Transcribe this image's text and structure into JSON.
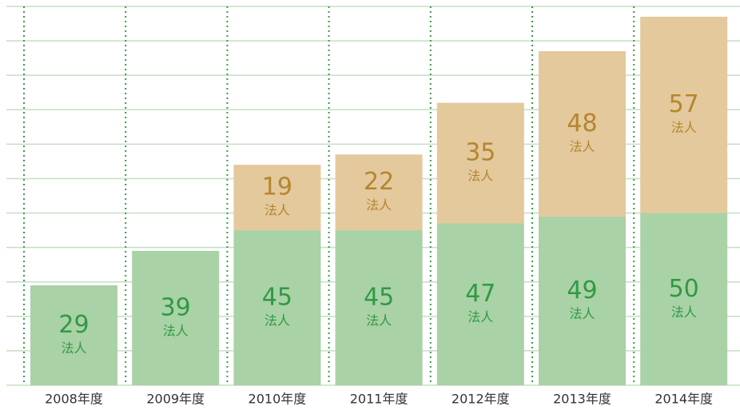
{
  "chart_data": {
    "type": "stacked_bar",
    "categories": [
      "2008年度",
      "2009年度",
      "2010年度",
      "2011年度",
      "2012年度",
      "2013年度",
      "2014年度"
    ],
    "unit": "法人",
    "series": [
      {
        "color": "#a9d2a6",
        "label_color": "#2f9a43",
        "values": [
          29,
          39,
          45,
          45,
          47,
          49,
          50
        ]
      },
      {
        "color": "#e3c99b",
        "label_color": "#b5852f",
        "values": [
          null,
          null,
          19,
          22,
          35,
          48,
          57
        ]
      }
    ],
    "ylim": [
      0,
      110
    ],
    "yticks": [
      0,
      10,
      20,
      30,
      40,
      50,
      60,
      70,
      80,
      90,
      100,
      110
    ],
    "grid": true
  }
}
